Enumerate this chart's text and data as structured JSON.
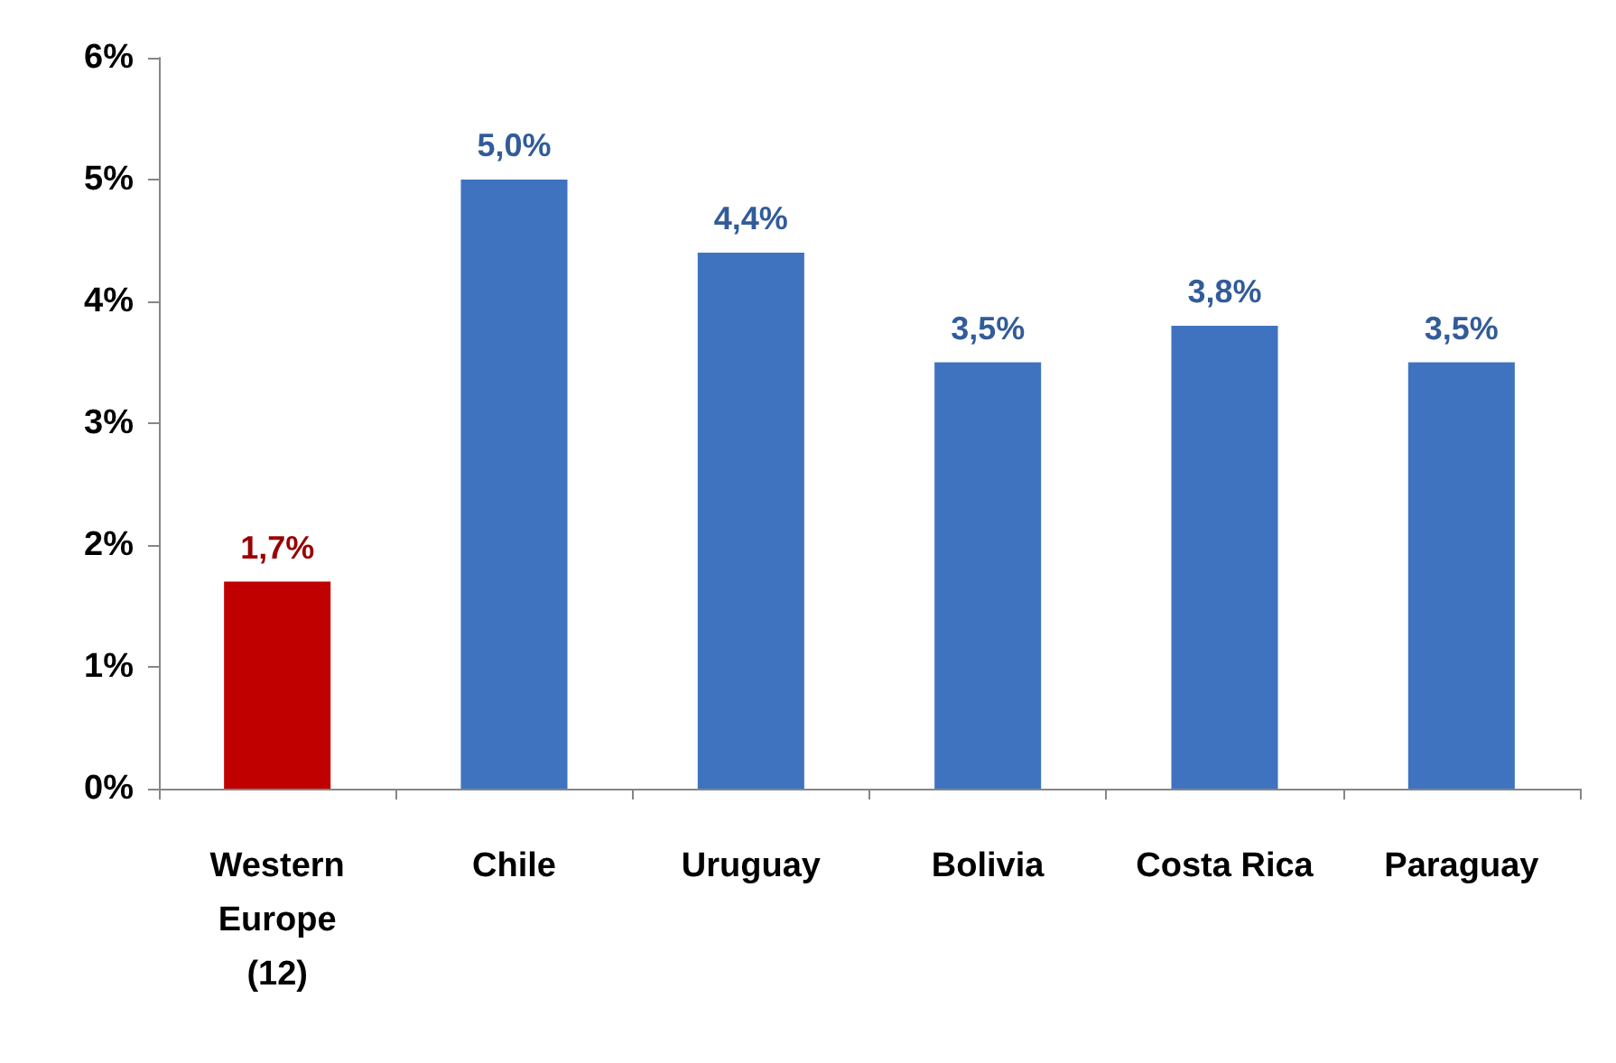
{
  "chart_data": {
    "type": "bar",
    "categories": [
      "Western\nEurope\n(12)",
      "Chile",
      "Uruguay",
      "Bolivia",
      "Costa Rica",
      "Paraguay"
    ],
    "values": [
      1.7,
      5.0,
      4.4,
      3.5,
      3.8,
      3.5
    ],
    "colors": [
      "#c00000",
      "#3f73bf",
      "#3f73bf",
      "#3f73bf",
      "#3f73bf",
      "#3f73bf"
    ],
    "value_labels": [
      "1,7%",
      "5,0%",
      "4,4%",
      "3,5%",
      "3,8%",
      "3,5%"
    ],
    "ylim": [
      0,
      6
    ],
    "yticks": [
      {
        "value": 0,
        "label": "0%"
      },
      {
        "value": 1,
        "label": "1%"
      },
      {
        "value": 2,
        "label": "2%"
      },
      {
        "value": 3,
        "label": "3%"
      },
      {
        "value": 4,
        "label": "4%"
      },
      {
        "value": 5,
        "label": "5%"
      },
      {
        "value": 6,
        "label": "6%"
      }
    ],
    "grid": false
  }
}
